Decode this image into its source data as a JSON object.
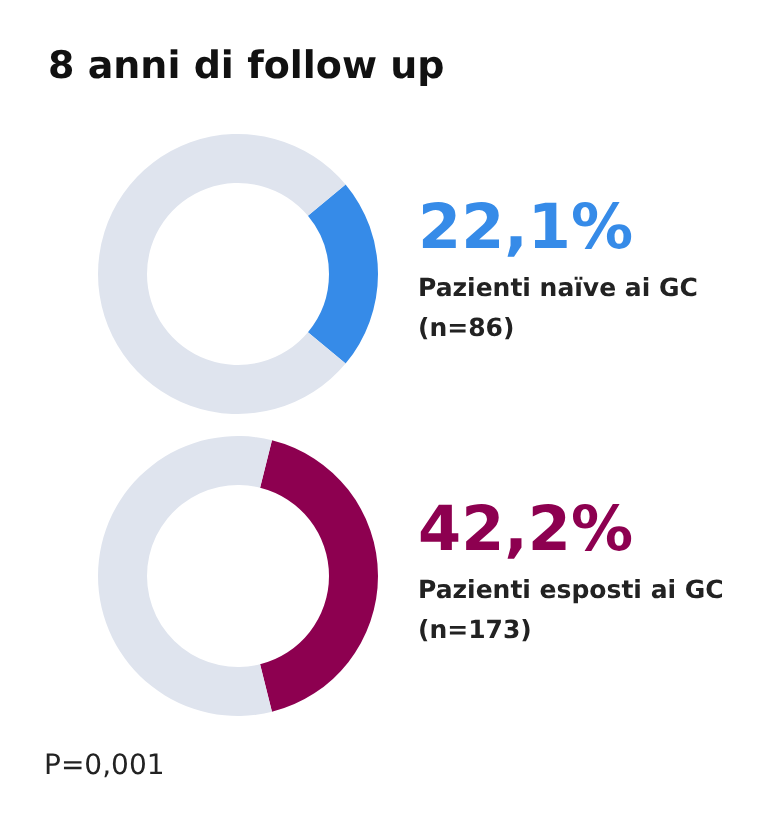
{
  "chart_data": [
    {
      "type": "donut",
      "title": "8 anni di follow up",
      "categories": [
        "Pazienti naïve ai GC\n(n=86)",
        null
      ],
      "values": [
        22.1,
        77.9
      ],
      "colors": [
        "#368be8",
        "#dfe4ee"
      ],
      "value_labels": [
        "22,1%",
        null
      ]
    },
    {
      "type": "donut",
      "categories": [
        "Pazienti esposti ai GC\n(n=173)",
        null
      ],
      "values": [
        42.2,
        57.8
      ],
      "colors": [
        "#8d0050",
        "#dfe4ee"
      ],
      "value_labels": [
        "42,2%",
        null
      ],
      "annotations": [
        "P=0,001"
      ]
    }
  ]
}
